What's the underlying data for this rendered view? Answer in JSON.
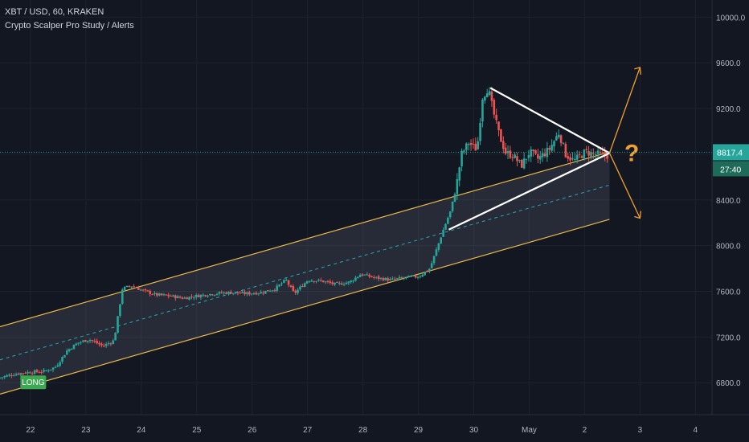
{
  "header": {
    "symbol_line": "XBT / USD, 60, KRAKEN",
    "study_line": "Crypto Scalper Pro Study / Alerts"
  },
  "colors": {
    "background": "#131722",
    "grid": "#1e222d",
    "up": "#26a69a",
    "down": "#ef5350",
    "channel": "#e8b84a",
    "channel_mid": "#2aa6b3",
    "triangle": "#ffffff",
    "arrow": "#f0a030",
    "price_line": "#26a69a",
    "long_badge": "#3ca850"
  },
  "badges": {
    "long_label": "LONG",
    "question_mark": "?"
  },
  "chart_data": {
    "type": "candlestick",
    "y_axis": {
      "range": [
        6520,
        10150
      ],
      "ticks": [
        "10000.0",
        "9600.0",
        "9200.0",
        "8800.0",
        "8400.0",
        "8000.0",
        "7600.0",
        "7200.0",
        "6800.0"
      ],
      "tick_values": [
        10000,
        9600,
        9200,
        8800,
        8400,
        8000,
        7600,
        7200,
        6800
      ]
    },
    "x_axis": {
      "ticks": [
        "22",
        "23",
        "24",
        "25",
        "26",
        "27",
        "28",
        "29",
        "30",
        "May",
        "2",
        "3",
        "4"
      ],
      "tick_days": [
        22,
        23,
        24,
        25,
        26,
        27,
        28,
        29,
        30,
        31,
        32,
        33,
        34
      ],
      "range_days": [
        21.45,
        34.3
      ]
    },
    "current_price": {
      "label": "8817.4",
      "value": 8817.4
    },
    "countdown": "27:40",
    "price_path": [
      [
        21.45,
        6840
      ],
      [
        21.7,
        6870
      ],
      [
        21.95,
        6890
      ],
      [
        22.3,
        6900
      ],
      [
        22.5,
        6940
      ],
      [
        22.7,
        7080
      ],
      [
        22.9,
        7150
      ],
      [
        23.1,
        7180
      ],
      [
        23.35,
        7120
      ],
      [
        23.55,
        7170
      ],
      [
        23.62,
        7380
      ],
      [
        23.7,
        7620
      ],
      [
        23.85,
        7650
      ],
      [
        24.05,
        7610
      ],
      [
        24.3,
        7570
      ],
      [
        24.55,
        7560
      ],
      [
        24.8,
        7540
      ],
      [
        25.05,
        7560
      ],
      [
        25.35,
        7580
      ],
      [
        25.65,
        7590
      ],
      [
        25.95,
        7580
      ],
      [
        26.2,
        7590
      ],
      [
        26.45,
        7620
      ],
      [
        26.65,
        7700
      ],
      [
        26.8,
        7580
      ],
      [
        27.05,
        7700
      ],
      [
        27.3,
        7690
      ],
      [
        27.55,
        7660
      ],
      [
        27.8,
        7680
      ],
      [
        28.0,
        7750
      ],
      [
        28.25,
        7720
      ],
      [
        28.55,
        7700
      ],
      [
        28.8,
        7720
      ],
      [
        29.05,
        7730
      ],
      [
        29.25,
        7800
      ],
      [
        29.38,
        7980
      ],
      [
        29.5,
        8150
      ],
      [
        29.62,
        8300
      ],
      [
        29.72,
        8500
      ],
      [
        29.82,
        8800
      ],
      [
        29.95,
        8900
      ],
      [
        30.1,
        8840
      ],
      [
        30.2,
        9300
      ],
      [
        30.3,
        9380
      ],
      [
        30.4,
        9160
      ],
      [
        30.5,
        8970
      ],
      [
        30.62,
        8810
      ],
      [
        30.75,
        8790
      ],
      [
        30.9,
        8700
      ],
      [
        31.05,
        8820
      ],
      [
        31.2,
        8760
      ],
      [
        31.4,
        8840
      ],
      [
        31.58,
        8990
      ],
      [
        31.7,
        8800
      ],
      [
        31.85,
        8740
      ],
      [
        32.05,
        8820
      ],
      [
        32.25,
        8800
      ],
      [
        32.45,
        8790
      ]
    ],
    "channel": {
      "upper": [
        [
          21.45,
          7290
        ],
        [
          32.45,
          8820
        ]
      ],
      "lower": [
        [
          21.45,
          6700
        ],
        [
          32.45,
          8230
        ]
      ],
      "middle": [
        [
          21.45,
          7000
        ],
        [
          32.45,
          8530
        ]
      ]
    },
    "triangle": {
      "upper": [
        [
          30.3,
          9380
        ],
        [
          32.45,
          8810
        ]
      ],
      "lower": [
        [
          29.55,
          8140
        ],
        [
          32.45,
          8810
        ]
      ]
    }
  }
}
